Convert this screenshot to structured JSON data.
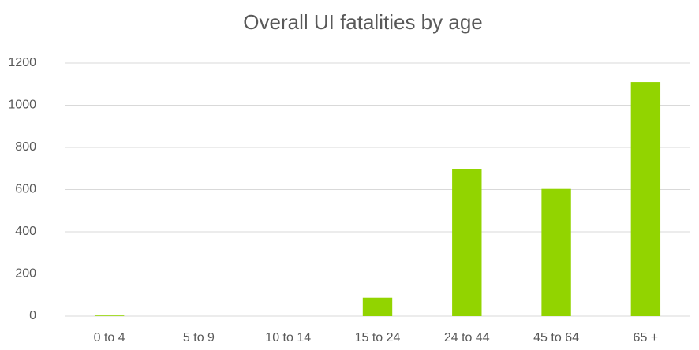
{
  "chart_data": {
    "type": "bar",
    "title": "Overall UI fatalities by age",
    "categories": [
      "0 to 4",
      "5 to 9",
      "10 to 14",
      "15 to 24",
      "24 to 44",
      "45 to 64",
      "65 +"
    ],
    "values": [
      3,
      0,
      0,
      87,
      697,
      603,
      1110
    ],
    "color": "#92d400",
    "ylim": [
      0,
      1200
    ],
    "yticks": [
      0,
      200,
      400,
      600,
      800,
      1000,
      1200
    ],
    "grid": true
  }
}
